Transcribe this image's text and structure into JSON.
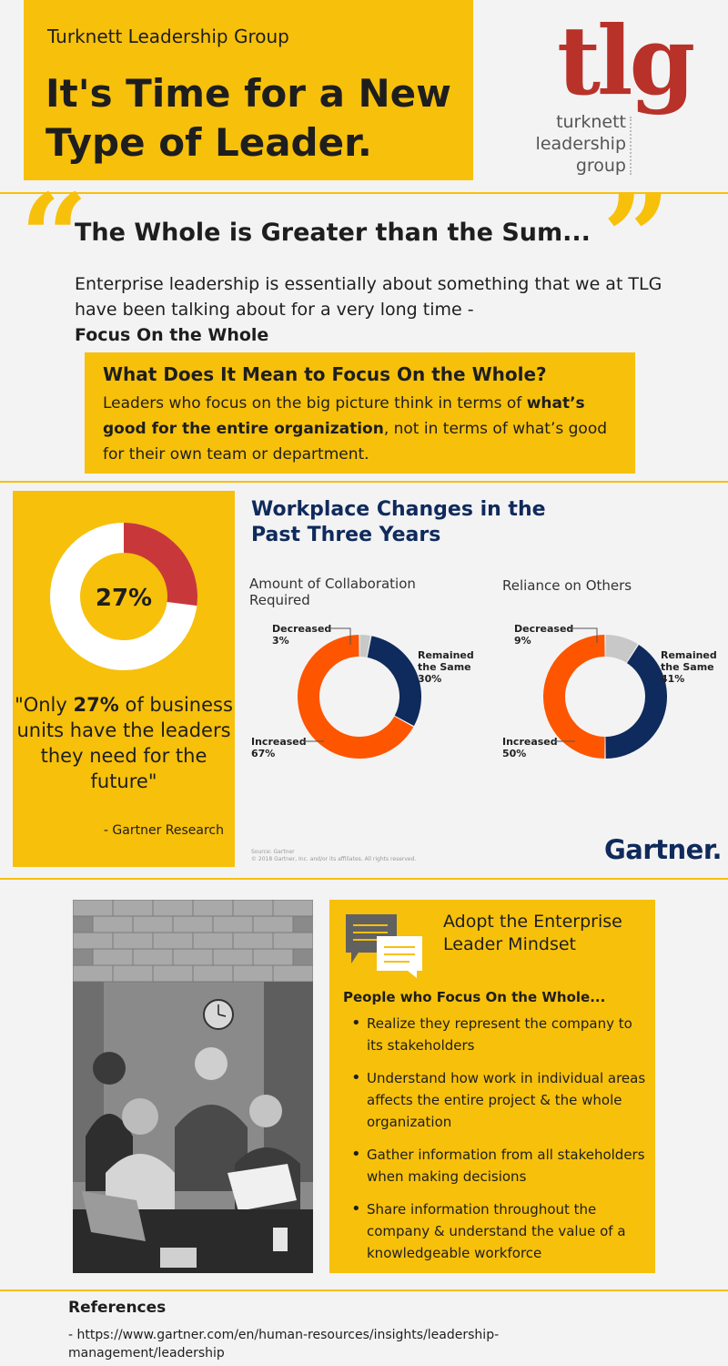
{
  "header": {
    "company": "Turknett Leadership Group",
    "title": "It's Time for a New Type of Leader.",
    "logo": {
      "mark": "tlg",
      "lines": [
        "turknett",
        "leadership",
        "group"
      ]
    }
  },
  "whole_section": {
    "title": "The Whole is Greater than the Sum...",
    "intro": "Enterprise leadership is essentially about something that we at TLG have been talking about for a very long time -",
    "intro_bold": "Focus On the Whole",
    "box_title": "What Does It Mean to Focus On the Whole?",
    "box_text_1": "Leaders who focus on the big picture think in terms of",
    "box_text_bold": "what’s good for the entire organization",
    "box_text_2": ", not in terms of what’s good for their own team or department."
  },
  "stat": {
    "value_label": "27%",
    "quote_1": "\"Only",
    "quote_bold": "27%",
    "quote_2": "of business units have the leaders they need for the future\"",
    "source": "- Gartner Research"
  },
  "gartner": {
    "title": "Workplace Changes in the Past Three Years",
    "source_line_1": "Source: Gartner",
    "source_line_2": "© 2018 Gartner, Inc. and/or its affiliates. All rights reserved.",
    "logo": "Gartner."
  },
  "colors": {
    "accent_yellow": "#f7c00b",
    "tlg_red": "#b8322a",
    "gartner_navy": "#0f2a5c",
    "increased_orange": "#fe5500",
    "decreased_gray": "#c8c8c8",
    "stat_red": "#c8383a"
  },
  "chart_data": [
    {
      "type": "pie",
      "variant": "donut",
      "categories": [
        "27%",
        ""
      ],
      "values": [
        27,
        73
      ],
      "center_label": "27%"
    },
    {
      "type": "pie",
      "variant": "donut",
      "title": "Amount of Collaboration Required",
      "categories": [
        "Decreased",
        "Remained the Same",
        "Increased"
      ],
      "values": [
        3,
        30,
        67
      ],
      "labels": [
        "3%",
        "30%",
        "67%"
      ]
    },
    {
      "type": "pie",
      "variant": "donut",
      "title": "Reliance on Others",
      "categories": [
        "Decreased",
        "Remained the Same",
        "Increased"
      ],
      "values": [
        9,
        41,
        50
      ],
      "labels": [
        "9%",
        "41%",
        "50%"
      ]
    }
  ],
  "mindset": {
    "title": "Adopt the Enterprise Leader Mindset",
    "subtitle": "People who Focus On the Whole...",
    "bullets": [
      "Realize they represent the company to its stakeholders",
      "Understand how work in individual areas affects the entire project & the whole organization",
      "Gather information from all stakeholders when making decisions",
      "Share information throughout the company & understand the value of a knowledgeable workforce"
    ]
  },
  "references": {
    "title": "References",
    "text": "- https://www.gartner.com/en/human-resources/insights/leadership-management/leadership"
  }
}
